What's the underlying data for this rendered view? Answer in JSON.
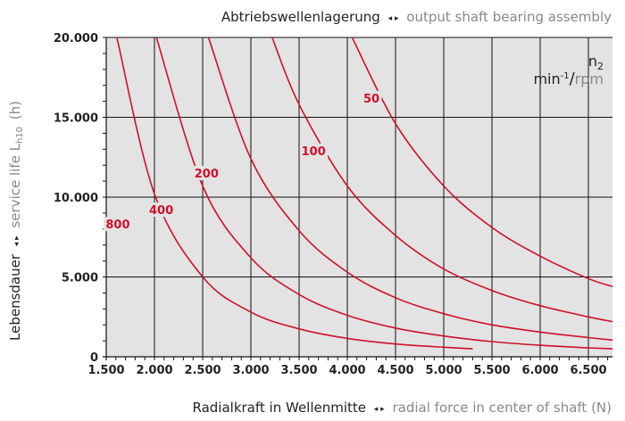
{
  "chart_data": {
    "type": "line",
    "title": {
      "de": "Abtriebswellenlagerung",
      "arrows": "◂ ▸",
      "en": "output shaft bearing assembly"
    },
    "xlabel": {
      "de": "Radialkraft in Wellenmitte",
      "arrows": "◂ ▸",
      "en": "radial force in center of shaft (N)"
    },
    "ylabel": {
      "de": "Lebensdauer",
      "arrows": "◂ ▸",
      "en": "service life L",
      "en_sub": "h10",
      "en_unit": "(h)"
    },
    "legend_box": {
      "n": "n",
      "n_sub": "2",
      "unit_de": "min",
      "unit_sup": "-1",
      "slash": "/",
      "unit_en": "rpm"
    },
    "xlim": [
      1500,
      6750
    ],
    "ylim": [
      0,
      20000
    ],
    "x_ticks": [
      1500,
      2000,
      2500,
      3000,
      3500,
      4000,
      4500,
      5000,
      5500,
      6000,
      6500
    ],
    "x_tick_labels": [
      "1.500",
      "2.000",
      "2.500",
      "3.000",
      "3.500",
      "4.000",
      "4.500",
      "5.000",
      "5.500",
      "6.000",
      "6.500"
    ],
    "y_ticks": [
      0,
      5000,
      10000,
      15000,
      20000
    ],
    "y_tick_labels": [
      "0",
      "5.000",
      "10.000",
      "15.000",
      "20.000"
    ],
    "grid": true,
    "colors": {
      "curve": "#d0102a",
      "plot_bg": "#e3e3e3",
      "grid": "#111111"
    },
    "series": [
      {
        "name": "50",
        "label_at": [
          4250,
          16100
        ],
        "points": [
          [
            4050,
            20000
          ],
          [
            4500,
            14600
          ],
          [
            5000,
            10700
          ],
          [
            5500,
            8100
          ],
          [
            6000,
            6300
          ],
          [
            6500,
            4900
          ],
          [
            6750,
            4400
          ]
        ]
      },
      {
        "name": "100",
        "label_at": [
          3650,
          12800
        ],
        "points": [
          [
            3220,
            20000
          ],
          [
            3500,
            15800
          ],
          [
            4000,
            10700
          ],
          [
            4500,
            7600
          ],
          [
            5000,
            5500
          ],
          [
            5500,
            4150
          ],
          [
            6000,
            3200
          ],
          [
            6500,
            2500
          ],
          [
            6750,
            2200
          ]
        ]
      },
      {
        "name": "200",
        "label_at": [
          2540,
          11400
        ],
        "points": [
          [
            2560,
            20000
          ],
          [
            3000,
            12400
          ],
          [
            3500,
            7900
          ],
          [
            4000,
            5300
          ],
          [
            4500,
            3700
          ],
          [
            5000,
            2700
          ],
          [
            5500,
            2000
          ],
          [
            6000,
            1550
          ],
          [
            6500,
            1200
          ],
          [
            6750,
            1050
          ]
        ]
      },
      {
        "name": "400",
        "label_at": [
          2070,
          9100
        ],
        "points": [
          [
            2020,
            20000
          ],
          [
            2500,
            10700
          ],
          [
            3000,
            6200
          ],
          [
            3500,
            3900
          ],
          [
            4000,
            2600
          ],
          [
            4500,
            1800
          ],
          [
            5000,
            1300
          ],
          [
            5500,
            950
          ],
          [
            6000,
            720
          ],
          [
            6500,
            560
          ],
          [
            6750,
            500
          ]
        ]
      },
      {
        "name": "800",
        "label_at": [
          1620,
          8200
        ],
        "points": [
          [
            1610,
            20000
          ],
          [
            2000,
            10200
          ],
          [
            2500,
            5000
          ],
          [
            3000,
            2800
          ],
          [
            3500,
            1750
          ],
          [
            4000,
            1150
          ],
          [
            4500,
            800
          ],
          [
            5000,
            600
          ],
          [
            5300,
            500
          ]
        ]
      }
    ]
  }
}
